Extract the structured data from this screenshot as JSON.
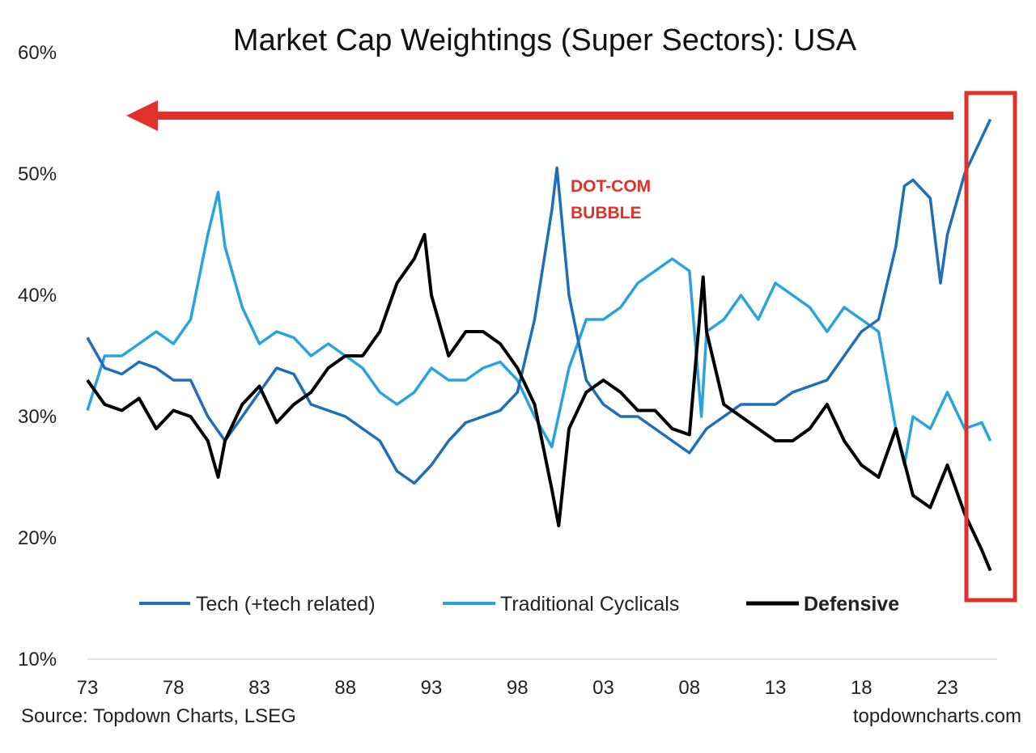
{
  "chart_data": {
    "type": "line",
    "title": "Market Cap Weightings (Super Sectors): USA",
    "xlabel": "",
    "ylabel": "",
    "ylim": [
      10,
      60
    ],
    "xlim": [
      1973,
      2026
    ],
    "y_ticks": [
      "10%",
      "20%",
      "30%",
      "40%",
      "50%",
      "60%"
    ],
    "y_tick_values": [
      10,
      20,
      30,
      40,
      50,
      60
    ],
    "x_ticks": [
      "73",
      "78",
      "83",
      "88",
      "93",
      "98",
      "03",
      "08",
      "13",
      "18",
      "23"
    ],
    "x_tick_values": [
      1973,
      1978,
      1983,
      1988,
      1993,
      1998,
      2003,
      2008,
      2013,
      2018,
      2023
    ],
    "grid": false,
    "legend_position": "bottom",
    "series": [
      {
        "name": "Tech (+tech related)",
        "color": "#1f6fb8",
        "x": [
          1973,
          1974,
          1975,
          1976,
          1977,
          1978,
          1979,
          1980,
          1981,
          1982,
          1983,
          1984,
          1985,
          1986,
          1987,
          1988,
          1989,
          1990,
          1991,
          1992,
          1993,
          1994,
          1995,
          1996,
          1997,
          1998,
          1999,
          2000,
          2000.3,
          2001,
          2002,
          2003,
          2004,
          2005,
          2006,
          2007,
          2008,
          2009,
          2010,
          2011,
          2012,
          2013,
          2014,
          2015,
          2016,
          2017,
          2018,
          2019,
          2020,
          2020.5,
          2021,
          2022,
          2022.6,
          2023,
          2024,
          2025,
          2025.5
        ],
        "y": [
          36.5,
          34,
          33.5,
          34.5,
          34,
          33,
          33,
          30,
          28,
          30,
          32,
          34,
          33.5,
          31,
          30.5,
          30,
          29,
          28,
          25.5,
          24.5,
          26,
          28,
          29.5,
          30,
          30.5,
          32,
          38,
          47,
          50.5,
          40,
          33,
          31,
          30,
          30,
          29,
          28,
          27,
          29,
          30,
          31,
          31,
          31,
          32,
          32.5,
          33,
          35,
          37,
          38,
          44,
          49,
          49.5,
          48,
          41,
          45,
          50,
          53,
          54.5
        ]
      },
      {
        "name": "Traditional Cyclicals",
        "color": "#29a3e0",
        "x": [
          1973,
          1974,
          1975,
          1976,
          1977,
          1978,
          1979,
          1980,
          1980.6,
          1981,
          1982,
          1983,
          1984,
          1985,
          1986,
          1987,
          1988,
          1989,
          1990,
          1991,
          1992,
          1993,
          1994,
          1995,
          1996,
          1997,
          1998,
          1999,
          2000,
          2001,
          2002,
          2003,
          2004,
          2005,
          2006,
          2007,
          2008,
          2008.7,
          2009,
          2010,
          2011,
          2012,
          2013,
          2014,
          2015,
          2016,
          2017,
          2018,
          2019,
          2020,
          2020.5,
          2021,
          2022,
          2023,
          2024,
          2025,
          2025.5
        ],
        "y": [
          30.5,
          35,
          35,
          36,
          37,
          36,
          38,
          45,
          48.5,
          44,
          39,
          36,
          37,
          36.5,
          35,
          36,
          35,
          34,
          32,
          31,
          32,
          34,
          33,
          33,
          34,
          34.5,
          33,
          30,
          27.5,
          34,
          38,
          38,
          39,
          41,
          42,
          43,
          42,
          30,
          37,
          38,
          40,
          38,
          41,
          40,
          39,
          37,
          39,
          38,
          37,
          29,
          26,
          30,
          29,
          32,
          29,
          29.5,
          28
        ]
      },
      {
        "name": "Defensive",
        "color": "#000000",
        "x": [
          1973,
          1974,
          1975,
          1976,
          1977,
          1978,
          1979,
          1980,
          1980.6,
          1981,
          1982,
          1983,
          1984,
          1985,
          1986,
          1987,
          1988,
          1989,
          1990,
          1991,
          1992,
          1992.6,
          1993,
          1994,
          1995,
          1996,
          1997,
          1998,
          1999,
          2000,
          2000.4,
          2001,
          2002,
          2003,
          2004,
          2005,
          2006,
          2007,
          2008,
          2008.8,
          2009,
          2010,
          2011,
          2012,
          2013,
          2014,
          2015,
          2016,
          2017,
          2018,
          2019,
          2020,
          2021,
          2022,
          2023,
          2024,
          2025,
          2025.5
        ],
        "y": [
          33,
          31,
          30.5,
          31.5,
          29,
          30.5,
          30,
          28,
          25,
          28,
          31,
          32.5,
          29.5,
          31,
          32,
          34,
          35,
          35,
          37,
          41,
          43,
          45,
          40,
          35,
          37,
          37,
          36,
          34,
          31,
          24,
          21,
          29,
          32,
          33,
          32,
          30.5,
          30.5,
          29,
          28.5,
          41.5,
          37,
          31,
          30,
          29,
          28,
          28,
          29,
          31,
          28,
          26,
          25,
          29,
          23.5,
          22.5,
          26,
          22,
          19,
          17.3
        ]
      }
    ],
    "annotations": [
      {
        "text": "DOT-COM",
        "color": "#e0312a"
      },
      {
        "text": "BUBBLE",
        "color": "#e0312a"
      }
    ],
    "source": "Source: Topdown Charts, LSEG",
    "watermark": "topdowncharts.com",
    "highlight_color": "#e0312a"
  }
}
